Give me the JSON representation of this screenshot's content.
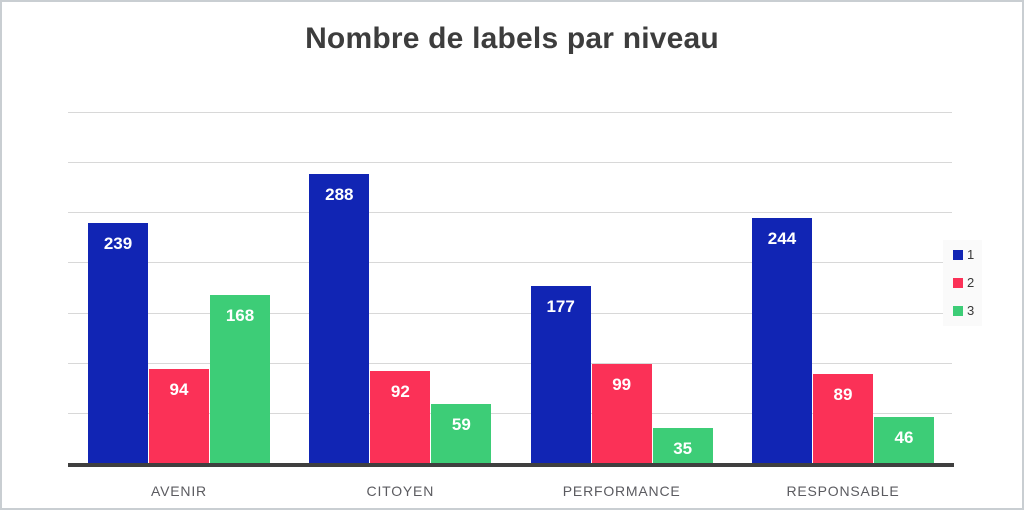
{
  "title": "Nombre de labels par niveau",
  "chart_data": {
    "type": "bar",
    "title": "Nombre de labels par niveau",
    "categories": [
      "AVENIR",
      "CITOYEN",
      "PERFORMANCE",
      "RESPONSABLE"
    ],
    "series": [
      {
        "name": "1",
        "color": "#1125b4",
        "values": [
          239,
          288,
          177,
          244
        ]
      },
      {
        "name": "2",
        "color": "#fb3157",
        "values": [
          94,
          92,
          99,
          89
        ]
      },
      {
        "name": "3",
        "color": "#3dcd77",
        "values": [
          168,
          59,
          35,
          46
        ]
      }
    ],
    "xlabel": "",
    "ylabel": "",
    "ylim": [
      0,
      350
    ],
    "grid_step": 50,
    "grid": true,
    "y_tick_labels_visible": false,
    "legend_position": "right",
    "value_labels": "inside-top"
  },
  "legend": {
    "items": [
      {
        "label": "1",
        "color": "#1125b4"
      },
      {
        "label": "2",
        "color": "#fb3157"
      },
      {
        "label": "3",
        "color": "#3dcd77"
      }
    ]
  },
  "colors": {
    "background": "#ffffff",
    "border": "#c9ced2",
    "gridline": "#d8d8d8",
    "axis_line": "#3f3f3f",
    "title_text": "#3d3d3d",
    "category_label_text": "#5b5b60",
    "value_label_text": "#ffffff",
    "legend_text": "#3a3a3a",
    "legend_background": "#fafafa"
  }
}
